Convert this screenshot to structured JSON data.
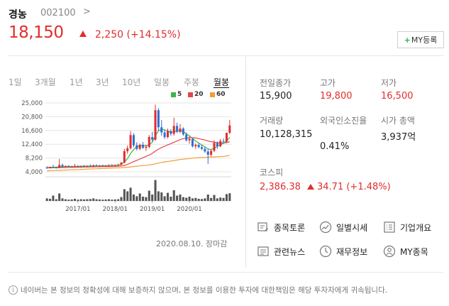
{
  "stock": {
    "name": "경농",
    "code": "002100",
    "code_chevron": ">",
    "price": "18,150",
    "change": "2,250 (+14.15%)",
    "my_button_plus": "+",
    "my_button_label": "MY등록"
  },
  "tabs": [
    {
      "label": "1일"
    },
    {
      "label": "3개월"
    },
    {
      "label": "1년"
    },
    {
      "label": "3년"
    },
    {
      "label": "10년"
    },
    {
      "label": "일봉"
    },
    {
      "label": "주봉"
    },
    {
      "label": "월봉",
      "active": true
    }
  ],
  "legend": [
    {
      "label": "5",
      "color": "#3fb44a"
    },
    {
      "label": "20",
      "color": "#e84545"
    },
    {
      "label": "60",
      "color": "#f29d38"
    }
  ],
  "chart_data": {
    "type": "candlestick",
    "period": "monthly",
    "y_ticks": [
      "25,000",
      "20,800",
      "16,600",
      "12,400",
      "8,200",
      "4,000"
    ],
    "ylim": [
      4000,
      25000
    ],
    "x_ticks": [
      "2017/01",
      "2018/01",
      "2019/01",
      "2020/01"
    ],
    "grid": true,
    "colors": {
      "up": "#e12d2d",
      "down": "#2f6fd6",
      "ma5": "#3fb44a",
      "ma20": "#e84545",
      "ma60": "#f29d38"
    },
    "candles": [
      {
        "o": 5300,
        "h": 5700,
        "l": 4900,
        "c": 5100
      },
      {
        "o": 5100,
        "h": 5600,
        "l": 5000,
        "c": 5500
      },
      {
        "o": 5500,
        "h": 6100,
        "l": 5200,
        "c": 5300
      },
      {
        "o": 5300,
        "h": 5500,
        "l": 5000,
        "c": 5200
      },
      {
        "o": 5200,
        "h": 7900,
        "l": 5100,
        "c": 6100
      },
      {
        "o": 6100,
        "h": 6500,
        "l": 5400,
        "c": 5600
      },
      {
        "o": 5600,
        "h": 5900,
        "l": 5300,
        "c": 5800
      },
      {
        "o": 5800,
        "h": 6000,
        "l": 5400,
        "c": 5500
      },
      {
        "o": 5500,
        "h": 5800,
        "l": 5300,
        "c": 5600
      },
      {
        "o": 5600,
        "h": 6400,
        "l": 5500,
        "c": 5700
      },
      {
        "o": 5700,
        "h": 6000,
        "l": 5400,
        "c": 5500
      },
      {
        "o": 5500,
        "h": 5900,
        "l": 5300,
        "c": 5700
      },
      {
        "o": 5700,
        "h": 6100,
        "l": 5500,
        "c": 5600
      },
      {
        "o": 5600,
        "h": 6000,
        "l": 5400,
        "c": 5800
      },
      {
        "o": 5800,
        "h": 6300,
        "l": 5600,
        "c": 5700
      },
      {
        "o": 5700,
        "h": 6200,
        "l": 5500,
        "c": 6000
      },
      {
        "o": 6000,
        "h": 6300,
        "l": 5700,
        "c": 5800
      },
      {
        "o": 5800,
        "h": 6100,
        "l": 5600,
        "c": 5900
      },
      {
        "o": 5900,
        "h": 6200,
        "l": 5600,
        "c": 5700
      },
      {
        "o": 5700,
        "h": 6000,
        "l": 5500,
        "c": 5900
      },
      {
        "o": 5900,
        "h": 6300,
        "l": 5700,
        "c": 6000
      },
      {
        "o": 6000,
        "h": 6400,
        "l": 5800,
        "c": 5900
      },
      {
        "o": 5900,
        "h": 6200,
        "l": 5700,
        "c": 6100
      },
      {
        "o": 6100,
        "h": 6500,
        "l": 5900,
        "c": 6200
      },
      {
        "o": 6200,
        "h": 7000,
        "l": 6000,
        "c": 6800
      },
      {
        "o": 6800,
        "h": 11000,
        "l": 6600,
        "c": 10300
      },
      {
        "o": 10300,
        "h": 12000,
        "l": 9500,
        "c": 11200
      },
      {
        "o": 11200,
        "h": 16400,
        "l": 10800,
        "c": 15200
      },
      {
        "o": 15200,
        "h": 15800,
        "l": 11500,
        "c": 12100
      },
      {
        "o": 12100,
        "h": 13000,
        "l": 10500,
        "c": 11000
      },
      {
        "o": 11000,
        "h": 12600,
        "l": 10600,
        "c": 12200
      },
      {
        "o": 12200,
        "h": 13100,
        "l": 11000,
        "c": 11300
      },
      {
        "o": 11300,
        "h": 12200,
        "l": 10400,
        "c": 11600
      },
      {
        "o": 11600,
        "h": 15200,
        "l": 11200,
        "c": 14600
      },
      {
        "o": 14600,
        "h": 16200,
        "l": 13200,
        "c": 13800
      },
      {
        "o": 13800,
        "h": 24500,
        "l": 13500,
        "c": 22800
      },
      {
        "o": 22800,
        "h": 23400,
        "l": 16500,
        "c": 17600
      },
      {
        "o": 17600,
        "h": 19800,
        "l": 15000,
        "c": 16000
      },
      {
        "o": 16000,
        "h": 16800,
        "l": 14000,
        "c": 14600
      },
      {
        "o": 14600,
        "h": 17200,
        "l": 14200,
        "c": 16400
      },
      {
        "o": 16400,
        "h": 17000,
        "l": 15000,
        "c": 15600
      },
      {
        "o": 15600,
        "h": 20500,
        "l": 15000,
        "c": 18000
      },
      {
        "o": 18000,
        "h": 19000,
        "l": 15800,
        "c": 16200
      },
      {
        "o": 16200,
        "h": 18600,
        "l": 15800,
        "c": 17200
      },
      {
        "o": 17200,
        "h": 17600,
        "l": 15000,
        "c": 15400
      },
      {
        "o": 15400,
        "h": 16000,
        "l": 13200,
        "c": 13600
      },
      {
        "o": 13600,
        "h": 14800,
        "l": 12600,
        "c": 14000
      },
      {
        "o": 14000,
        "h": 14400,
        "l": 11400,
        "c": 11800
      },
      {
        "o": 11800,
        "h": 12600,
        "l": 11000,
        "c": 12200
      },
      {
        "o": 12200,
        "h": 12800,
        "l": 11200,
        "c": 11500
      },
      {
        "o": 11500,
        "h": 12200,
        "l": 10600,
        "c": 11000
      },
      {
        "o": 11000,
        "h": 11600,
        "l": 9800,
        "c": 10200
      },
      {
        "o": 10200,
        "h": 11000,
        "l": 6400,
        "c": 9200
      },
      {
        "o": 9200,
        "h": 10800,
        "l": 8600,
        "c": 10400
      },
      {
        "o": 10400,
        "h": 13600,
        "l": 10000,
        "c": 12800
      },
      {
        "o": 12800,
        "h": 13200,
        "l": 11000,
        "c": 11800
      },
      {
        "o": 11800,
        "h": 14000,
        "l": 11500,
        "c": 13400
      },
      {
        "o": 13400,
        "h": 14200,
        "l": 12600,
        "c": 13200
      },
      {
        "o": 13200,
        "h": 15900,
        "l": 12800,
        "c": 15900
      },
      {
        "o": 15900,
        "h": 19800,
        "l": 15500,
        "c": 18150
      }
    ],
    "volume_relative": [
      0.12,
      0.1,
      0.25,
      0.08,
      0.35,
      0.12,
      0.08,
      0.06,
      0.07,
      0.1,
      0.06,
      0.08,
      0.07,
      0.08,
      0.09,
      0.12,
      0.08,
      0.07,
      0.06,
      0.07,
      0.08,
      0.06,
      0.07,
      0.08,
      0.18,
      0.55,
      0.45,
      0.62,
      0.3,
      0.22,
      0.35,
      0.2,
      0.18,
      0.48,
      0.3,
      0.98,
      0.45,
      0.4,
      0.22,
      0.38,
      0.2,
      0.5,
      0.25,
      0.3,
      0.18,
      0.15,
      0.2,
      0.12,
      0.14,
      0.1,
      0.09,
      0.12,
      0.3,
      0.14,
      0.28,
      0.12,
      0.16,
      0.14,
      0.32,
      0.36
    ],
    "ma_lines": {
      "ma5": [
        5300,
        5350,
        5400,
        5450,
        5500,
        5550,
        5600,
        5620,
        5640,
        5660,
        5680,
        5700,
        5720,
        5740,
        5760,
        5780,
        5800,
        5820,
        5840,
        5860,
        5880,
        5900,
        5950,
        6000,
        6200,
        7000,
        8000,
        9600,
        10800,
        11600,
        12000,
        12100,
        11900,
        12200,
        13000,
        15000,
        16500,
        17000,
        16800,
        16500,
        16000,
        16200,
        16400,
        16600,
        16300,
        15600,
        15000,
        14200,
        13400,
        12800,
        12200,
        11600,
        11000,
        10800,
        11200,
        11700,
        12200,
        12700,
        13300,
        14500
      ],
      "ma20": [
        5200,
        5220,
        5240,
        5260,
        5280,
        5300,
        5320,
        5340,
        5360,
        5380,
        5400,
        5420,
        5440,
        5460,
        5480,
        5500,
        5520,
        5540,
        5560,
        5580,
        5600,
        5620,
        5650,
        5680,
        5750,
        5950,
        6250,
        6700,
        7100,
        7500,
        7900,
        8300,
        8700,
        9100,
        9600,
        10300,
        10900,
        11400,
        11800,
        12200,
        12600,
        13000,
        13400,
        13800,
        14100,
        14300,
        14400,
        14400,
        14300,
        14100,
        13900,
        13700,
        13400,
        13200,
        13000,
        12900,
        12800,
        12800,
        12900,
        13200
      ],
      "ma60": [
        4300,
        4340,
        4380,
        4420,
        4460,
        4500,
        4540,
        4580,
        4620,
        4660,
        4700,
        4740,
        4780,
        4820,
        4860,
        4900,
        4940,
        4980,
        5020,
        5060,
        5100,
        5140,
        5180,
        5220,
        5260,
        5320,
        5400,
        5500,
        5600,
        5700,
        5800,
        5900,
        6000,
        6100,
        6250,
        6450,
        6650,
        6850,
        7000,
        7150,
        7300,
        7450,
        7600,
        7750,
        7850,
        7950,
        8050,
        8150,
        8250,
        8300,
        8350,
        8400,
        8450,
        8500,
        8550,
        8600,
        8650,
        8700,
        8850,
        9050
      ]
    }
  },
  "date_status": "2020.08.10. 장마감",
  "info": {
    "prev_close_label": "전일종가",
    "prev_close": "15,900",
    "high_label": "고가",
    "high": "19,800",
    "low_label": "저가",
    "low": "16,500",
    "volume_label": "거래량",
    "volume": "10,128,315",
    "foreign_label": "외국인소진율",
    "foreign": "0.41%",
    "mcap_label": "시가 총액",
    "mcap": "3,937억"
  },
  "kospi": {
    "label": "코스피",
    "value": "2,386.38",
    "change": "34.71 (+1.48%)"
  },
  "links": [
    {
      "label": "종목토론",
      "icon": "discussion-icon"
    },
    {
      "label": "일별시세",
      "icon": "daily-chart-icon"
    },
    {
      "label": "기업개요",
      "icon": "company-list-icon"
    },
    {
      "label": "관련뉴스",
      "icon": "news-icon"
    },
    {
      "label": "재무정보",
      "icon": "finance-clock-icon"
    },
    {
      "label": "MY종목",
      "icon": "my-stock-person-icon"
    }
  ],
  "disclaimer": "네이버는 본 정보의 정확성에 대해 보증하지 않으며, 본 정보를 이용한 투자에 대한책임은 해당 투자자에게 귀속됩니다.",
  "disclaimer_icon_char": "i"
}
